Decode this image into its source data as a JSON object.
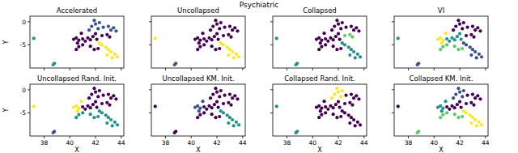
{
  "title": "Psychiatric",
  "chart_data": [
    {
      "type": "scatter",
      "title": "Accelerated",
      "y_label": "Y",
      "tick_labels": "y",
      "xlim": [
        36.9,
        44.2
      ],
      "ylim": [
        -10,
        1.2
      ],
      "xticks": [
        38,
        40,
        42,
        44
      ],
      "yticks": [
        -5,
        0
      ],
      "series": [
        {
          "color": "#440154",
          "x": [
            40.3,
            40.5,
            40.7,
            40.9,
            40.6,
            41.0,
            41.2,
            41.4,
            41.6,
            41.8,
            42.0,
            42.1,
            42.5,
            42.9,
            43.1,
            42.2,
            41.9,
            41.6,
            41.0,
            40.7,
            40.5
          ],
          "values": [
            -3.8,
            -3.5,
            -4.0,
            -2.5,
            -4.6,
            -3.7,
            -4.2,
            -3.5,
            -3.9,
            -3.2,
            -2.6,
            -3.8,
            -3.0,
            -2.8,
            -3.3,
            -5.8,
            -6.0,
            -5.3,
            -5.0,
            -5.4,
            -6.0
          ]
        },
        {
          "color": "#3b528b",
          "x": [
            42.2,
            42.0,
            41.9,
            42.3,
            41.7,
            41.5,
            42.6,
            43.0,
            43.2,
            43.4,
            43.6
          ],
          "values": [
            -1.5,
            -0.5,
            0.3,
            -0.2,
            -1.0,
            -1.8,
            -1.2,
            -1.0,
            -1.8,
            -1.3,
            -2.0
          ]
        },
        {
          "color": "#21918c",
          "x": [
            37.2,
            38.8,
            38.7
          ],
          "values": [
            -3.6,
            -9.0,
            -9.3
          ]
        },
        {
          "color": "#fde725",
          "x": [
            42.3,
            42.5,
            42.8,
            43.0,
            43.2,
            43.5,
            43.7,
            43.3,
            42.9
          ],
          "values": [
            -4.6,
            -5.0,
            -5.5,
            -6.0,
            -6.5,
            -7.0,
            -7.6,
            -7.8,
            -7.2
          ]
        }
      ]
    },
    {
      "type": "scatter",
      "title": "Uncollapsed",
      "tick_labels": false,
      "xlim": [
        36.9,
        44.2
      ],
      "ylim": [
        -10,
        1.2
      ],
      "xticks": [
        38,
        40,
        42,
        44
      ],
      "yticks": [
        -5,
        0
      ],
      "series": [
        {
          "color": "#440154",
          "x": [
            40.3,
            40.5,
            40.7,
            40.9,
            40.6,
            41.0,
            41.2,
            41.4,
            41.6,
            41.8,
            42.0,
            42.1,
            42.2,
            42.0,
            41.9,
            42.3,
            41.7,
            41.5,
            42.6,
            43.0,
            43.2,
            43.4,
            43.6,
            42.5,
            42.9,
            43.1,
            42.2,
            41.9,
            41.6,
            41.0,
            40.7,
            40.5
          ],
          "values": [
            -3.8,
            -3.5,
            -4.0,
            -2.5,
            -4.6,
            -3.7,
            -4.2,
            -3.5,
            -3.9,
            -3.2,
            -2.6,
            -3.8,
            -1.5,
            -0.5,
            0.3,
            -0.2,
            -1.0,
            -1.8,
            -1.2,
            -1.0,
            -1.8,
            -1.3,
            -2.0,
            -3.0,
            -2.8,
            -3.3,
            -5.8,
            -6.0,
            -5.3,
            -5.0,
            -5.4,
            -6.0
          ]
        },
        {
          "color": "#3b528b",
          "x": [
            38.8,
            38.7
          ],
          "values": [
            -9.0,
            -9.3
          ]
        },
        {
          "color": "#fde725",
          "x": [
            37.2,
            42.3,
            42.5,
            42.8,
            43.0,
            43.2,
            43.5,
            43.7,
            43.3,
            42.9
          ],
          "values": [
            -3.6,
            -4.6,
            -5.0,
            -5.5,
            -6.0,
            -6.5,
            -7.0,
            -7.6,
            -7.8,
            -7.2
          ]
        }
      ]
    },
    {
      "type": "scatter",
      "title": "Collapsed",
      "tick_labels": false,
      "xlim": [
        36.9,
        44.2
      ],
      "ylim": [
        -10,
        1.2
      ],
      "xticks": [
        38,
        40,
        42,
        44
      ],
      "yticks": [
        -5,
        0
      ],
      "series": [
        {
          "color": "#440154",
          "x": [
            40.3,
            40.5,
            40.7,
            40.9,
            40.6,
            41.0,
            41.2,
            41.4,
            41.6,
            41.8,
            42.0,
            42.1,
            42.2,
            42.0,
            41.9,
            42.3,
            41.7,
            41.5,
            42.6,
            43.0,
            43.2,
            43.4,
            43.6,
            42.2,
            41.9,
            41.6,
            41.0,
            40.7,
            40.5
          ],
          "values": [
            -3.8,
            -3.5,
            -4.0,
            -2.5,
            -4.6,
            -3.7,
            -4.2,
            -3.5,
            -3.9,
            -3.2,
            -2.6,
            -3.8,
            -1.5,
            -0.5,
            0.3,
            -0.2,
            -1.0,
            -1.8,
            -1.2,
            -1.0,
            -1.8,
            -1.3,
            -2.0,
            -5.8,
            -6.0,
            -5.3,
            -5.0,
            -5.4,
            -6.0
          ]
        },
        {
          "color": "#21918c",
          "x": [
            37.2,
            38.8,
            38.7,
            42.3,
            42.5,
            42.8,
            43.0,
            43.2,
            43.5,
            43.7,
            43.3,
            42.9
          ],
          "values": [
            -3.6,
            -9.0,
            -9.3,
            -4.6,
            -5.0,
            -5.5,
            -6.0,
            -6.5,
            -7.0,
            -7.6,
            -7.8,
            -7.2
          ]
        },
        {
          "color": "#5ec962",
          "x": [
            42.5,
            42.9,
            43.1
          ],
          "values": [
            -3.0,
            -2.8,
            -3.3
          ]
        }
      ]
    },
    {
      "type": "scatter",
      "title": "VI",
      "tick_labels": false,
      "xlim": [
        36.9,
        44.2
      ],
      "ylim": [
        -10,
        1.2
      ],
      "xticks": [
        38,
        40,
        42,
        44
      ],
      "yticks": [
        -5,
        0
      ],
      "series": [
        {
          "color": "#440154",
          "x": [
            42.2,
            42.0,
            41.9,
            42.3,
            41.7,
            41.5,
            42.6,
            43.0,
            43.2,
            43.4,
            43.6,
            42.5,
            42.9,
            43.1
          ],
          "values": [
            -1.5,
            -0.5,
            0.3,
            -0.2,
            -1.0,
            -1.8,
            -1.2,
            -1.0,
            -1.8,
            -1.3,
            -2.0,
            -3.0,
            -2.8,
            -3.3
          ]
        },
        {
          "color": "#3b528b",
          "x": [
            38.8,
            38.7,
            42.3,
            42.5,
            42.8,
            43.0,
            43.2,
            43.5,
            43.7,
            43.3,
            42.9
          ],
          "values": [
            -9.0,
            -9.3,
            -4.6,
            -5.0,
            -5.5,
            -6.0,
            -6.5,
            -7.0,
            -7.6,
            -7.8,
            -7.2
          ]
        },
        {
          "color": "#21918c",
          "x": [
            37.2,
            41.0,
            41.2,
            41.4,
            41.6,
            41.8,
            42.0,
            42.1
          ],
          "values": [
            -3.6,
            -3.7,
            -4.2,
            -3.5,
            -3.9,
            -3.2,
            -2.6,
            -3.8
          ]
        },
        {
          "color": "#5ec962",
          "x": [
            42.2,
            41.9,
            41.6,
            41.0,
            40.7,
            40.5
          ],
          "values": [
            -5.8,
            -6.0,
            -5.3,
            -5.0,
            -5.4,
            -6.0
          ]
        },
        {
          "color": "#fde725",
          "x": [
            40.3,
            40.5,
            40.7,
            40.9,
            40.6
          ],
          "values": [
            -3.8,
            -3.5,
            -4.0,
            -2.5,
            -4.6
          ]
        }
      ]
    },
    {
      "type": "scatter",
      "title": "Uncollapsed Rand. Init.",
      "x_label": "X",
      "y_label": "Y",
      "tick_labels": true,
      "xlim": [
        36.9,
        44.2
      ],
      "ylim": [
        -10,
        1.2
      ],
      "xticks": [
        38,
        40,
        42,
        44
      ],
      "yticks": [
        -5,
        0
      ],
      "series": [
        {
          "color": "#440154",
          "x": [
            41.0,
            41.2,
            41.4,
            41.6,
            41.8,
            42.0,
            42.1,
            42.2,
            42.0,
            41.9,
            42.3,
            41.7,
            41.5,
            42.6,
            43.0,
            43.2,
            43.4,
            43.6,
            42.5,
            42.9,
            43.1
          ],
          "values": [
            -3.7,
            -4.2,
            -3.5,
            -3.9,
            -3.2,
            -2.6,
            -3.8,
            -1.5,
            -0.5,
            0.3,
            -0.2,
            -1.0,
            -1.8,
            -1.2,
            -1.0,
            -1.8,
            -1.3,
            -2.0,
            -3.0,
            -2.8,
            -3.3
          ]
        },
        {
          "color": "#3b528b",
          "x": [
            38.8,
            38.7
          ],
          "values": [
            -9.0,
            -9.3
          ]
        },
        {
          "color": "#21918c",
          "x": [
            42.3,
            42.5,
            42.8,
            43.0,
            43.2,
            43.5,
            43.7,
            43.3,
            42.9,
            42.2,
            41.9,
            41.6,
            41.0,
            40.7,
            40.5
          ],
          "values": [
            -4.6,
            -5.0,
            -5.5,
            -6.0,
            -6.5,
            -7.0,
            -7.6,
            -7.8,
            -7.2,
            -5.8,
            -6.0,
            -5.3,
            -5.0,
            -5.4,
            -6.0
          ]
        },
        {
          "color": "#fde725",
          "x": [
            37.2,
            40.3,
            40.5,
            40.7,
            40.9,
            40.6
          ],
          "values": [
            -3.6,
            -3.8,
            -3.5,
            -4.0,
            -2.5,
            -4.6
          ]
        }
      ]
    },
    {
      "type": "scatter",
      "title": "Uncollapsed KM. Init.",
      "x_label": "X",
      "tick_labels": "x",
      "xlim": [
        36.9,
        44.2
      ],
      "ylim": [
        -10,
        1.2
      ],
      "xticks": [
        38,
        40,
        42,
        44
      ],
      "yticks": [
        -5,
        0
      ],
      "series": [
        {
          "color": "#440154",
          "x": [
            37.2,
            38.8,
            38.7,
            41.0,
            41.2,
            41.4,
            41.6,
            41.8,
            42.0,
            42.1,
            42.2,
            42.0,
            41.9,
            42.3,
            41.7,
            41.5,
            42.6,
            43.0,
            43.2,
            43.4,
            43.6,
            42.5,
            42.9,
            43.1,
            42.2,
            41.9,
            41.6,
            41.0,
            40.7,
            40.5
          ],
          "values": [
            -3.6,
            -9.0,
            -9.3,
            -3.7,
            -4.2,
            -3.5,
            -3.9,
            -3.2,
            -2.6,
            -3.8,
            -1.5,
            -0.5,
            0.3,
            -0.2,
            -1.0,
            -1.8,
            -1.2,
            -1.0,
            -1.8,
            -1.3,
            -2.0,
            -3.0,
            -2.8,
            -3.3,
            -5.8,
            -6.0,
            -5.3,
            -5.0,
            -5.4,
            -6.0
          ]
        },
        {
          "color": "#3b528b",
          "x": [
            40.3,
            40.5,
            40.7,
            40.9,
            40.6
          ],
          "values": [
            -3.8,
            -3.5,
            -4.0,
            -2.5,
            -4.6
          ]
        },
        {
          "color": "#21918c",
          "x": [
            42.3,
            42.5,
            42.8,
            43.0,
            43.2,
            43.5,
            43.7,
            43.3,
            42.9
          ],
          "values": [
            -4.6,
            -5.0,
            -5.5,
            -6.0,
            -6.5,
            -7.0,
            -7.6,
            -7.8,
            -7.2
          ]
        }
      ]
    },
    {
      "type": "scatter",
      "title": "Collapsed Rand. Init.",
      "x_label": "X",
      "tick_labels": "x",
      "xlim": [
        36.9,
        44.2
      ],
      "ylim": [
        -10,
        1.2
      ],
      "xticks": [
        38,
        40,
        42,
        44
      ],
      "yticks": [
        -5,
        0
      ],
      "series": [
        {
          "color": "#440154",
          "x": [
            40.3,
            40.5,
            40.7,
            40.9,
            40.6,
            41.0,
            41.2,
            41.4,
            41.6,
            41.8,
            42.0,
            42.1,
            42.6,
            43.0,
            43.2,
            43.4,
            43.6,
            42.5,
            42.9,
            43.1,
            42.3,
            42.5,
            42.8,
            43.0,
            43.2,
            43.5,
            43.7,
            43.3,
            42.9,
            42.2,
            41.9,
            41.6,
            41.0,
            40.7,
            40.5
          ],
          "values": [
            -3.8,
            -3.5,
            -4.0,
            -2.5,
            -4.6,
            -3.7,
            -4.2,
            -3.5,
            -3.9,
            -3.2,
            -2.6,
            -3.8,
            -1.2,
            -1.0,
            -1.8,
            -1.3,
            -2.0,
            -3.0,
            -2.8,
            -3.3,
            -4.6,
            -5.0,
            -5.5,
            -6.0,
            -6.5,
            -7.0,
            -7.6,
            -7.8,
            -7.2,
            -5.8,
            -6.0,
            -5.3,
            -5.0,
            -5.4,
            -6.0
          ]
        },
        {
          "color": "#21918c",
          "x": [
            37.2,
            38.8,
            38.7
          ],
          "values": [
            -3.6,
            -9.0,
            -9.3
          ]
        },
        {
          "color": "#fde725",
          "x": [
            42.2,
            42.0,
            41.9,
            42.3,
            41.7,
            41.5
          ],
          "values": [
            -1.5,
            -0.5,
            0.3,
            -0.2,
            -1.0,
            -1.8
          ]
        }
      ]
    },
    {
      "type": "scatter",
      "title": "Collapsed KM. Init.",
      "x_label": "X",
      "tick_labels": "x",
      "xlim": [
        36.9,
        44.2
      ],
      "ylim": [
        -10,
        1.2
      ],
      "xticks": [
        38,
        40,
        42,
        44
      ],
      "yticks": [
        -5,
        0
      ],
      "series": [
        {
          "color": "#440154",
          "x": [
            37.2,
            41.0,
            41.2,
            41.4,
            41.6,
            41.8,
            42.0,
            42.1,
            42.6,
            43.0,
            43.2,
            43.4,
            43.6,
            42.5,
            42.9,
            43.1
          ],
          "values": [
            -3.6,
            -3.7,
            -4.2,
            -3.5,
            -3.9,
            -3.2,
            -2.6,
            -3.8,
            -1.2,
            -1.0,
            -1.8,
            -1.3,
            -2.0,
            -3.0,
            -2.8,
            -3.3
          ]
        },
        {
          "color": "#3b528b",
          "x": [
            42.2,
            42.0,
            41.9,
            42.3,
            41.7,
            41.5
          ],
          "values": [
            -1.5,
            -0.5,
            0.3,
            -0.2,
            -1.0,
            -1.8
          ]
        },
        {
          "color": "#21918c",
          "x": [
            40.3,
            40.5,
            40.7,
            40.9,
            40.6
          ],
          "values": [
            -3.8,
            -3.5,
            -4.0,
            -2.5,
            -4.6
          ]
        },
        {
          "color": "#5ec962",
          "x": [
            38.8,
            38.7,
            42.2,
            41.9,
            41.6,
            41.0,
            40.7,
            40.5
          ],
          "values": [
            -9.0,
            -9.3,
            -5.8,
            -6.0,
            -5.3,
            -5.0,
            -5.4,
            -6.0
          ]
        },
        {
          "color": "#fde725",
          "x": [
            42.3,
            42.5,
            42.8,
            43.0,
            43.2,
            43.5,
            43.7,
            43.3,
            42.9
          ],
          "values": [
            -4.6,
            -5.0,
            -5.5,
            -6.0,
            -6.5,
            -7.0,
            -7.6,
            -7.8,
            -7.2
          ]
        }
      ]
    }
  ]
}
